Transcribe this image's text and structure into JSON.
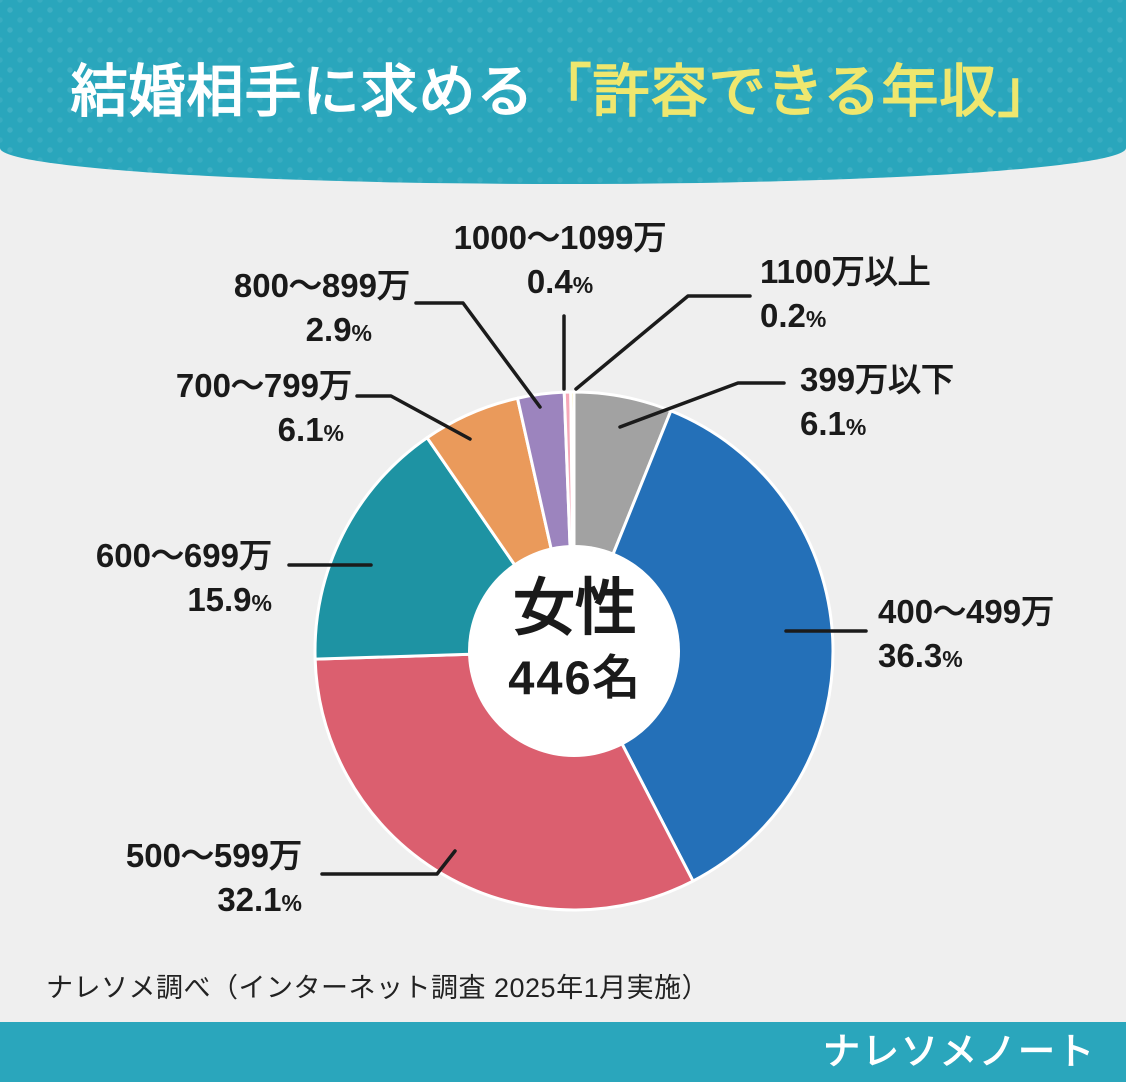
{
  "title": {
    "prefix": "結婚相手に求める",
    "highlight": "「許容できる年収」"
  },
  "chart_data": {
    "type": "pie",
    "title": "結婚相手に求める「許容できる年収」",
    "donut": true,
    "start_angle_deg": -90,
    "direction": "clockwise",
    "unit_percent": "%",
    "center": {
      "line1": "女性",
      "line2": "446名"
    },
    "segments": [
      {
        "label": "399万以下",
        "value": 6.1,
        "pct": "6.1",
        "color": "#A2A2A2"
      },
      {
        "label": "400〜499万",
        "value": 36.3,
        "pct": "36.3",
        "color": "#2470B8"
      },
      {
        "label": "500〜599万",
        "value": 32.1,
        "pct": "32.1",
        "color": "#DB5F6F"
      },
      {
        "label": "600〜699万",
        "value": 15.9,
        "pct": "15.9",
        "color": "#1E93A3"
      },
      {
        "label": "700〜799万",
        "value": 6.1,
        "pct": "6.1",
        "color": "#EA9A5B"
      },
      {
        "label": "800〜899万",
        "value": 2.9,
        "pct": "2.9",
        "color": "#9C84BE"
      },
      {
        "label": "1000〜1099万",
        "value": 0.4,
        "pct": "0.4",
        "color": "#F6A8B8"
      },
      {
        "label": "1100万以上",
        "value": 0.2,
        "pct": "0.2",
        "color": "#F0DC55"
      }
    ]
  },
  "footer": {
    "note": "ナレソメ調べ（インターネット調査 2025年1月実施）",
    "logo": "ナレソメノート"
  },
  "colors": {
    "header_bg": "#2AA6BC",
    "highlight_text": "#EFE76E",
    "background": "#EFEFEF",
    "line": "#1b1b1b"
  }
}
